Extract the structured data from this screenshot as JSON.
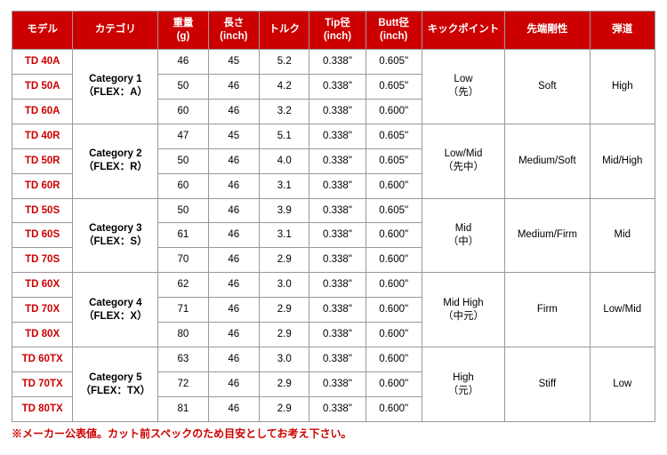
{
  "headers": [
    "モデル",
    "カテゴリ",
    "重量\n(g)",
    "長さ\n(inch)",
    "トルク",
    "Tip径\n(inch)",
    "Butt径\n(inch)",
    "キックポイント",
    "先端剛性",
    "弾道"
  ],
  "groups": [
    {
      "category": "Category 1\n（FLEX：A）",
      "kick": "Low\n（先）",
      "tip_stiff": "Soft",
      "traj": "High",
      "rows": [
        {
          "m": "TD 40A",
          "w": "46",
          "l": "45",
          "t": "5.2",
          "tip": "0.338\"",
          "butt": "0.605\""
        },
        {
          "m": "TD 50A",
          "w": "50",
          "l": "46",
          "t": "4.2",
          "tip": "0.338\"",
          "butt": "0.605\""
        },
        {
          "m": "TD 60A",
          "w": "60",
          "l": "46",
          "t": "3.2",
          "tip": "0.338\"",
          "butt": "0.600\""
        }
      ]
    },
    {
      "category": "Category 2\n（FLEX：R）",
      "kick": "Low/Mid\n（先中）",
      "tip_stiff": "Medium/Soft",
      "traj": "Mid/High",
      "rows": [
        {
          "m": "TD 40R",
          "w": "47",
          "l": "45",
          "t": "5.1",
          "tip": "0.338\"",
          "butt": "0.605\""
        },
        {
          "m": "TD 50R",
          "w": "50",
          "l": "46",
          "t": "4.0",
          "tip": "0.338\"",
          "butt": "0.605\""
        },
        {
          "m": "TD 60R",
          "w": "60",
          "l": "46",
          "t": "3.1",
          "tip": "0.338\"",
          "butt": "0.600\""
        }
      ]
    },
    {
      "category": "Category 3\n（FLEX：S）",
      "kick": "Mid\n（中）",
      "tip_stiff": "Medium/Firm",
      "traj": "Mid",
      "rows": [
        {
          "m": "TD 50S",
          "w": "50",
          "l": "46",
          "t": "3.9",
          "tip": "0.338\"",
          "butt": "0.605\""
        },
        {
          "m": "TD 60S",
          "w": "61",
          "l": "46",
          "t": "3.1",
          "tip": "0.338\"",
          "butt": "0.600\""
        },
        {
          "m": "TD 70S",
          "w": "70",
          "l": "46",
          "t": "2.9",
          "tip": "0.338\"",
          "butt": "0.600\""
        }
      ]
    },
    {
      "category": "Category 4\n（FLEX：X）",
      "kick": "Mid High\n（中元）",
      "tip_stiff": "Firm",
      "traj": "Low/Mid",
      "rows": [
        {
          "m": "TD 60X",
          "w": "62",
          "l": "46",
          "t": "3.0",
          "tip": "0.338\"",
          "butt": "0.600\""
        },
        {
          "m": "TD 70X",
          "w": "71",
          "l": "46",
          "t": "2.9",
          "tip": "0.338\"",
          "butt": "0.600\""
        },
        {
          "m": "TD 80X",
          "w": "80",
          "l": "46",
          "t": "2.9",
          "tip": "0.338\"",
          "butt": "0.600\""
        }
      ]
    },
    {
      "category": "Category 5\n（FLEX：TX）",
      "kick": "High\n（元）",
      "tip_stiff": "Stiff",
      "traj": "Low",
      "rows": [
        {
          "m": "TD 60TX",
          "w": "63",
          "l": "46",
          "t": "3.0",
          "tip": "0.338\"",
          "butt": "0.600\""
        },
        {
          "m": "TD 70TX",
          "w": "72",
          "l": "46",
          "t": "2.9",
          "tip": "0.338\"",
          "butt": "0.600\""
        },
        {
          "m": "TD 80TX",
          "w": "81",
          "l": "46",
          "t": "2.9",
          "tip": "0.338\"",
          "butt": "0.600\""
        }
      ]
    }
  ],
  "col_widths": [
    "62",
    "90",
    "50",
    "50",
    "50",
    "56",
    "56",
    "88",
    "88",
    "66"
  ],
  "note": "※メーカー公表値。カット前スペックのため目安としてお考え下さい。"
}
